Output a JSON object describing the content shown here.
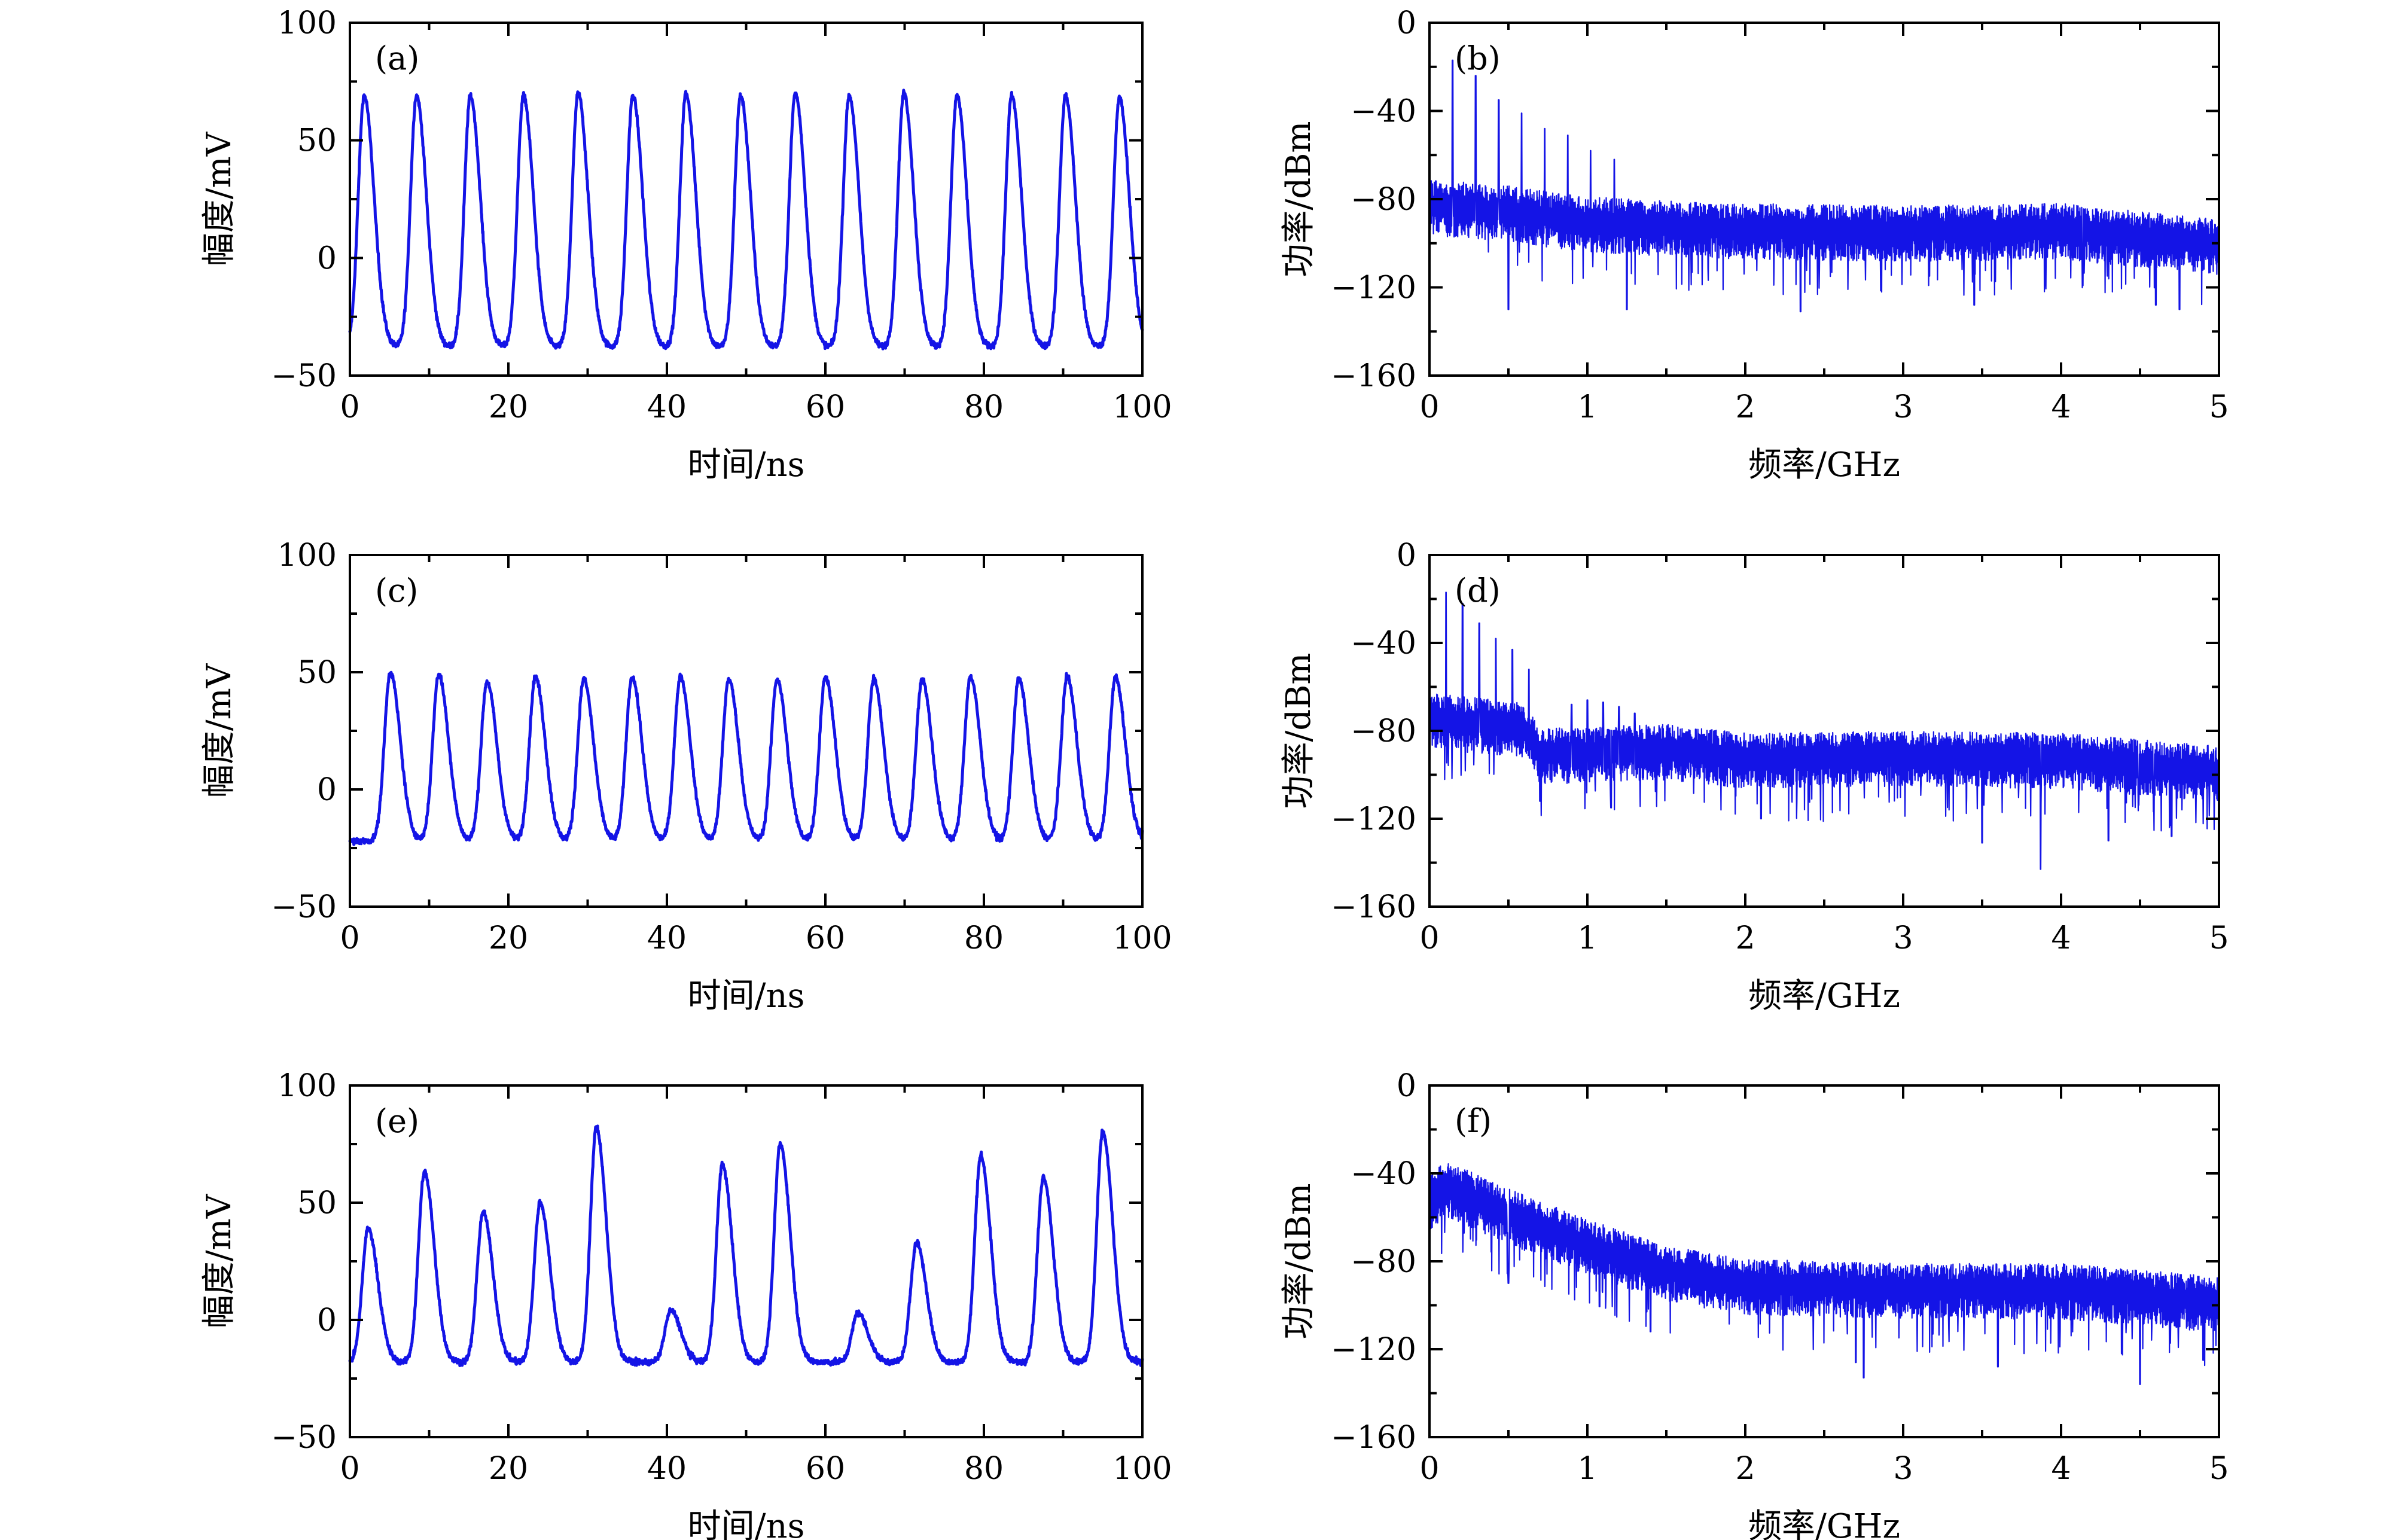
{
  "figure": {
    "colors": {
      "trace": "#1414e6",
      "axes": "#000000",
      "background": "#ffffff"
    }
  },
  "chart_data": [
    {
      "id": "a",
      "type": "line",
      "tag": "(a)",
      "xlabel": "时间/ns",
      "ylabel": "幅度/mV",
      "xlim": [
        0,
        100
      ],
      "ylim": [
        -50,
        100
      ],
      "xticks": [
        "0",
        "20",
        "40",
        "60",
        "80",
        "100"
      ],
      "yticks": [
        "−50",
        "0",
        "50",
        "100"
      ],
      "grid": false,
      "baseline_mV": -38,
      "end_value_mV": -30,
      "series": [
        {
          "peaks": [
            {
              "t": 1.8,
              "mV": 69
            },
            {
              "t": 8.4,
              "mV": 69
            },
            {
              "t": 15.2,
              "mV": 69
            },
            {
              "t": 21.9,
              "mV": 69
            },
            {
              "t": 28.8,
              "mV": 70
            },
            {
              "t": 35.7,
              "mV": 69
            },
            {
              "t": 42.4,
              "mV": 70
            },
            {
              "t": 49.3,
              "mV": 69
            },
            {
              "t": 56.2,
              "mV": 70
            },
            {
              "t": 63.0,
              "mV": 69
            },
            {
              "t": 69.9,
              "mV": 70
            },
            {
              "t": 76.6,
              "mV": 69
            },
            {
              "t": 83.5,
              "mV": 69
            },
            {
              "t": 90.3,
              "mV": 69
            },
            {
              "t": 97.1,
              "mV": 68
            }
          ]
        }
      ]
    },
    {
      "id": "b",
      "type": "line",
      "tag": "(b)",
      "xlabel": "频率/GHz",
      "ylabel": "功率/dBm",
      "xlim": [
        0,
        5
      ],
      "ylim": [
        -160,
        0
      ],
      "xticks": [
        "0",
        "1",
        "2",
        "3",
        "4",
        "5"
      ],
      "yticks": [
        "−160",
        "−120",
        "−80",
        "−40",
        "0"
      ],
      "grid": false,
      "noise_floor": [
        {
          "f": 0.0,
          "dBm": -82
        },
        {
          "f": 0.5,
          "dBm": -85
        },
        {
          "f": 1.0,
          "dBm": -90
        },
        {
          "f": 2.0,
          "dBm": -93
        },
        {
          "f": 3.0,
          "dBm": -94
        },
        {
          "f": 4.0,
          "dBm": -93
        },
        {
          "f": 5.0,
          "dBm": -100
        }
      ],
      "spectral_lines": [
        {
          "f": 0.146,
          "dBm": -17
        },
        {
          "f": 0.292,
          "dBm": -24
        },
        {
          "f": 0.438,
          "dBm": -35
        },
        {
          "f": 0.584,
          "dBm": -41
        },
        {
          "f": 0.73,
          "dBm": -48
        },
        {
          "f": 0.876,
          "dBm": -51
        },
        {
          "f": 1.02,
          "dBm": -58
        },
        {
          "f": 1.17,
          "dBm": -62
        }
      ],
      "dips": [
        {
          "f": 0.5,
          "dBm": -130
        },
        {
          "f": 1.25,
          "dBm": -130
        },
        {
          "f": 2.35,
          "dBm": -131
        },
        {
          "f": 3.45,
          "dBm": -128
        },
        {
          "f": 4.6,
          "dBm": -128
        },
        {
          "f": 4.75,
          "dBm": -130
        }
      ]
    },
    {
      "id": "c",
      "type": "line",
      "tag": "(c)",
      "xlabel": "时间/ns",
      "ylabel": "幅度/mV",
      "xlim": [
        0,
        100
      ],
      "ylim": [
        -50,
        100
      ],
      "xticks": [
        "0",
        "20",
        "40",
        "60",
        "80",
        "100"
      ],
      "yticks": [
        "−50",
        "0",
        "50",
        "100"
      ],
      "grid": false,
      "baseline_mV": -22,
      "end_value_mV": -18,
      "series": [
        {
          "peaks": [
            {
              "t": 5.1,
              "mV": 50
            },
            {
              "t": 11.2,
              "mV": 49
            },
            {
              "t": 17.3,
              "mV": 46
            },
            {
              "t": 23.4,
              "mV": 48
            },
            {
              "t": 29.5,
              "mV": 47
            },
            {
              "t": 35.6,
              "mV": 48
            },
            {
              "t": 41.7,
              "mV": 48
            },
            {
              "t": 47.8,
              "mV": 47
            },
            {
              "t": 53.9,
              "mV": 47
            },
            {
              "t": 60.0,
              "mV": 48
            },
            {
              "t": 66.1,
              "mV": 47
            },
            {
              "t": 72.2,
              "mV": 47
            },
            {
              "t": 78.3,
              "mV": 48
            },
            {
              "t": 84.4,
              "mV": 47
            },
            {
              "t": 90.5,
              "mV": 48
            },
            {
              "t": 96.6,
              "mV": 48
            }
          ]
        }
      ]
    },
    {
      "id": "d",
      "type": "line",
      "tag": "(d)",
      "xlabel": "频率/GHz",
      "ylabel": "功率/dBm",
      "xlim": [
        0,
        5
      ],
      "ylim": [
        -160,
        0
      ],
      "xticks": [
        "0",
        "1",
        "2",
        "3",
        "4",
        "5"
      ],
      "yticks": [
        "−160",
        "−120",
        "−80",
        "−40",
        "0"
      ],
      "grid": false,
      "noise_floor": [
        {
          "f": 0.0,
          "dBm": -74
        },
        {
          "f": 0.6,
          "dBm": -78
        },
        {
          "f": 0.7,
          "dBm": -90
        },
        {
          "f": 1.5,
          "dBm": -88
        },
        {
          "f": 2.0,
          "dBm": -92
        },
        {
          "f": 3.0,
          "dBm": -91
        },
        {
          "f": 4.0,
          "dBm": -92
        },
        {
          "f": 5.0,
          "dBm": -98
        }
      ],
      "spectral_lines": [
        {
          "f": 0.105,
          "dBm": -17
        },
        {
          "f": 0.21,
          "dBm": -22
        },
        {
          "f": 0.315,
          "dBm": -31
        },
        {
          "f": 0.42,
          "dBm": -38
        },
        {
          "f": 0.525,
          "dBm": -43
        },
        {
          "f": 0.63,
          "dBm": -52
        },
        {
          "f": 0.9,
          "dBm": -68
        },
        {
          "f": 1.0,
          "dBm": -66
        },
        {
          "f": 1.1,
          "dBm": -67
        },
        {
          "f": 1.2,
          "dBm": -69
        },
        {
          "f": 1.3,
          "dBm": -72
        }
      ],
      "dips": [
        {
          "f": 0.7,
          "dBm": -112
        },
        {
          "f": 1.15,
          "dBm": -115
        },
        {
          "f": 2.1,
          "dBm": -120
        },
        {
          "f": 3.5,
          "dBm": -131
        },
        {
          "f": 3.87,
          "dBm": -143
        },
        {
          "f": 4.3,
          "dBm": -130
        },
        {
          "f": 4.7,
          "dBm": -128
        }
      ]
    },
    {
      "id": "e",
      "type": "line",
      "tag": "(e)",
      "xlabel": "时间/ns",
      "ylabel": "幅度/mV",
      "xlim": [
        0,
        100
      ],
      "ylim": [
        -50,
        100
      ],
      "xticks": [
        "0",
        "20",
        "40",
        "60",
        "80",
        "100"
      ],
      "yticks": [
        "−50",
        "0",
        "50",
        "100"
      ],
      "grid": false,
      "baseline_mV": -18,
      "end_value_mV": -18,
      "series": [
        {
          "peaks": [
            {
              "t": 2.3,
              "mV": 39
            },
            {
              "t": 9.4,
              "mV": 63
            },
            {
              "t": 16.8,
              "mV": 46
            },
            {
              "t": 24.0,
              "mV": 50
            },
            {
              "t": 31.1,
              "mV": 82
            },
            {
              "t": 40.5,
              "mV": 4
            },
            {
              "t": 47.0,
              "mV": 66
            },
            {
              "t": 54.3,
              "mV": 75
            },
            {
              "t": 64.1,
              "mV": 3
            },
            {
              "t": 71.5,
              "mV": 33
            },
            {
              "t": 79.6,
              "mV": 70
            },
            {
              "t": 87.5,
              "mV": 61
            },
            {
              "t": 95.0,
              "mV": 80
            }
          ]
        }
      ]
    },
    {
      "id": "f",
      "type": "line",
      "tag": "(f)",
      "xlabel": "频率/GHz",
      "ylabel": "功率/dBm",
      "xlim": [
        0,
        5
      ],
      "ylim": [
        -160,
        0
      ],
      "xticks": [
        "0",
        "1",
        "2",
        "3",
        "4",
        "5"
      ],
      "yticks": [
        "−160",
        "−120",
        "−80",
        "−40",
        "0"
      ],
      "grid": false,
      "noise_floor": [
        {
          "f": 0.0,
          "dBm": -52
        },
        {
          "f": 0.1,
          "dBm": -45
        },
        {
          "f": 0.5,
          "dBm": -58
        },
        {
          "f": 1.0,
          "dBm": -72
        },
        {
          "f": 1.5,
          "dBm": -84
        },
        {
          "f": 2.0,
          "dBm": -90
        },
        {
          "f": 3.0,
          "dBm": -92
        },
        {
          "f": 4.0,
          "dBm": -92
        },
        {
          "f": 5.0,
          "dBm": -98
        }
      ],
      "spectral_lines": [],
      "dips": [
        {
          "f": 0.5,
          "dBm": -90
        },
        {
          "f": 1.4,
          "dBm": -112
        },
        {
          "f": 2.7,
          "dBm": -126
        },
        {
          "f": 2.75,
          "dBm": -133
        },
        {
          "f": 3.6,
          "dBm": -128
        },
        {
          "f": 4.5,
          "dBm": -136
        },
        {
          "f": 4.9,
          "dBm": -125
        }
      ]
    }
  ]
}
